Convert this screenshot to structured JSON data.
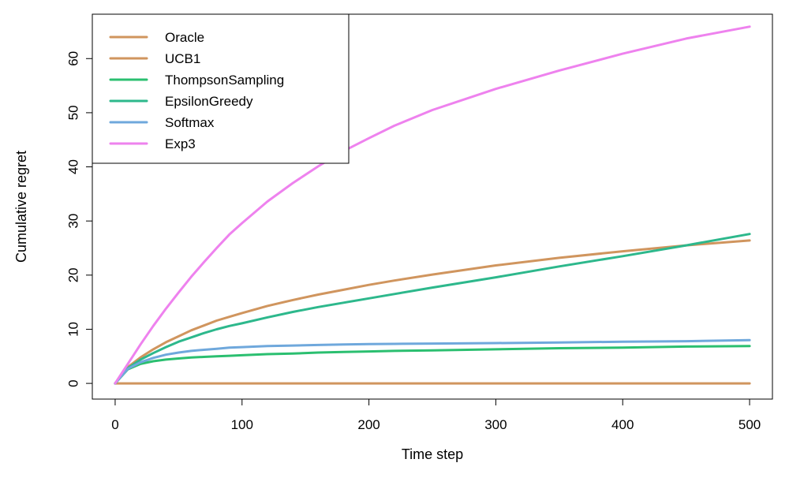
{
  "chart_data": {
    "type": "line",
    "title": "",
    "xlabel": "Time step",
    "ylabel": "Cumulative regret",
    "xlim": [
      -18,
      518
    ],
    "ylim": [
      -2.9,
      68.2
    ],
    "xticks": [
      0,
      100,
      200,
      300,
      400,
      500
    ],
    "yticks": [
      0,
      10,
      20,
      30,
      40,
      50,
      60
    ],
    "xtick_labels": [
      "0",
      "100",
      "200",
      "300",
      "400",
      "500"
    ],
    "ytick_labels": [
      "0",
      "10",
      "20",
      "30",
      "40",
      "50",
      "60"
    ],
    "grid": false,
    "legend_position": "top-left",
    "x": [
      0,
      10,
      20,
      30,
      40,
      50,
      60,
      70,
      80,
      90,
      100,
      120,
      140,
      160,
      180,
      200,
      220,
      250,
      300,
      350,
      400,
      450,
      500
    ],
    "series": [
      {
        "name": "Oracle",
        "color": "#d0955e",
        "values": [
          0,
          0,
          0,
          0,
          0,
          0,
          0,
          0,
          0,
          0,
          0,
          0,
          0,
          0,
          0,
          0,
          0,
          0,
          0,
          0,
          0,
          0,
          0
        ]
      },
      {
        "name": "UCB1",
        "color": "#d0955e",
        "values": [
          0,
          3.0,
          4.8,
          6.3,
          7.6,
          8.7,
          9.8,
          10.7,
          11.6,
          12.3,
          13.0,
          14.3,
          15.4,
          16.4,
          17.3,
          18.2,
          19.0,
          20.1,
          21.8,
          23.2,
          24.4,
          25.5,
          26.4
        ]
      },
      {
        "name": "ThompsonSampling",
        "color": "#2bbf70",
        "values": [
          0,
          2.6,
          3.6,
          4.1,
          4.4,
          4.6,
          4.8,
          4.9,
          5.0,
          5.1,
          5.2,
          5.4,
          5.5,
          5.7,
          5.8,
          5.9,
          6.0,
          6.1,
          6.3,
          6.5,
          6.6,
          6.8,
          6.9
        ]
      },
      {
        "name": "EpsilonGreedy",
        "color": "#2db88c",
        "values": [
          0,
          2.8,
          4.4,
          5.6,
          6.7,
          7.7,
          8.5,
          9.3,
          10.0,
          10.6,
          11.1,
          12.2,
          13.2,
          14.1,
          14.9,
          15.7,
          16.5,
          17.7,
          19.6,
          21.6,
          23.5,
          25.5,
          27.6
        ]
      },
      {
        "name": "Softmax",
        "color": "#6fa8dc",
        "values": [
          0,
          2.7,
          3.9,
          4.7,
          5.3,
          5.7,
          6.0,
          6.2,
          6.4,
          6.6,
          6.7,
          6.9,
          7.0,
          7.1,
          7.2,
          7.25,
          7.3,
          7.35,
          7.45,
          7.55,
          7.7,
          7.8,
          8.0
        ]
      },
      {
        "name": "Exp3",
        "color": "#ee82ee",
        "values": [
          0,
          3.6,
          7.2,
          10.6,
          13.8,
          16.8,
          19.7,
          22.4,
          25.0,
          27.5,
          29.6,
          33.6,
          37.0,
          40.1,
          42.9,
          45.3,
          47.6,
          50.5,
          54.4,
          57.8,
          60.9,
          63.7,
          65.9
        ]
      }
    ]
  }
}
